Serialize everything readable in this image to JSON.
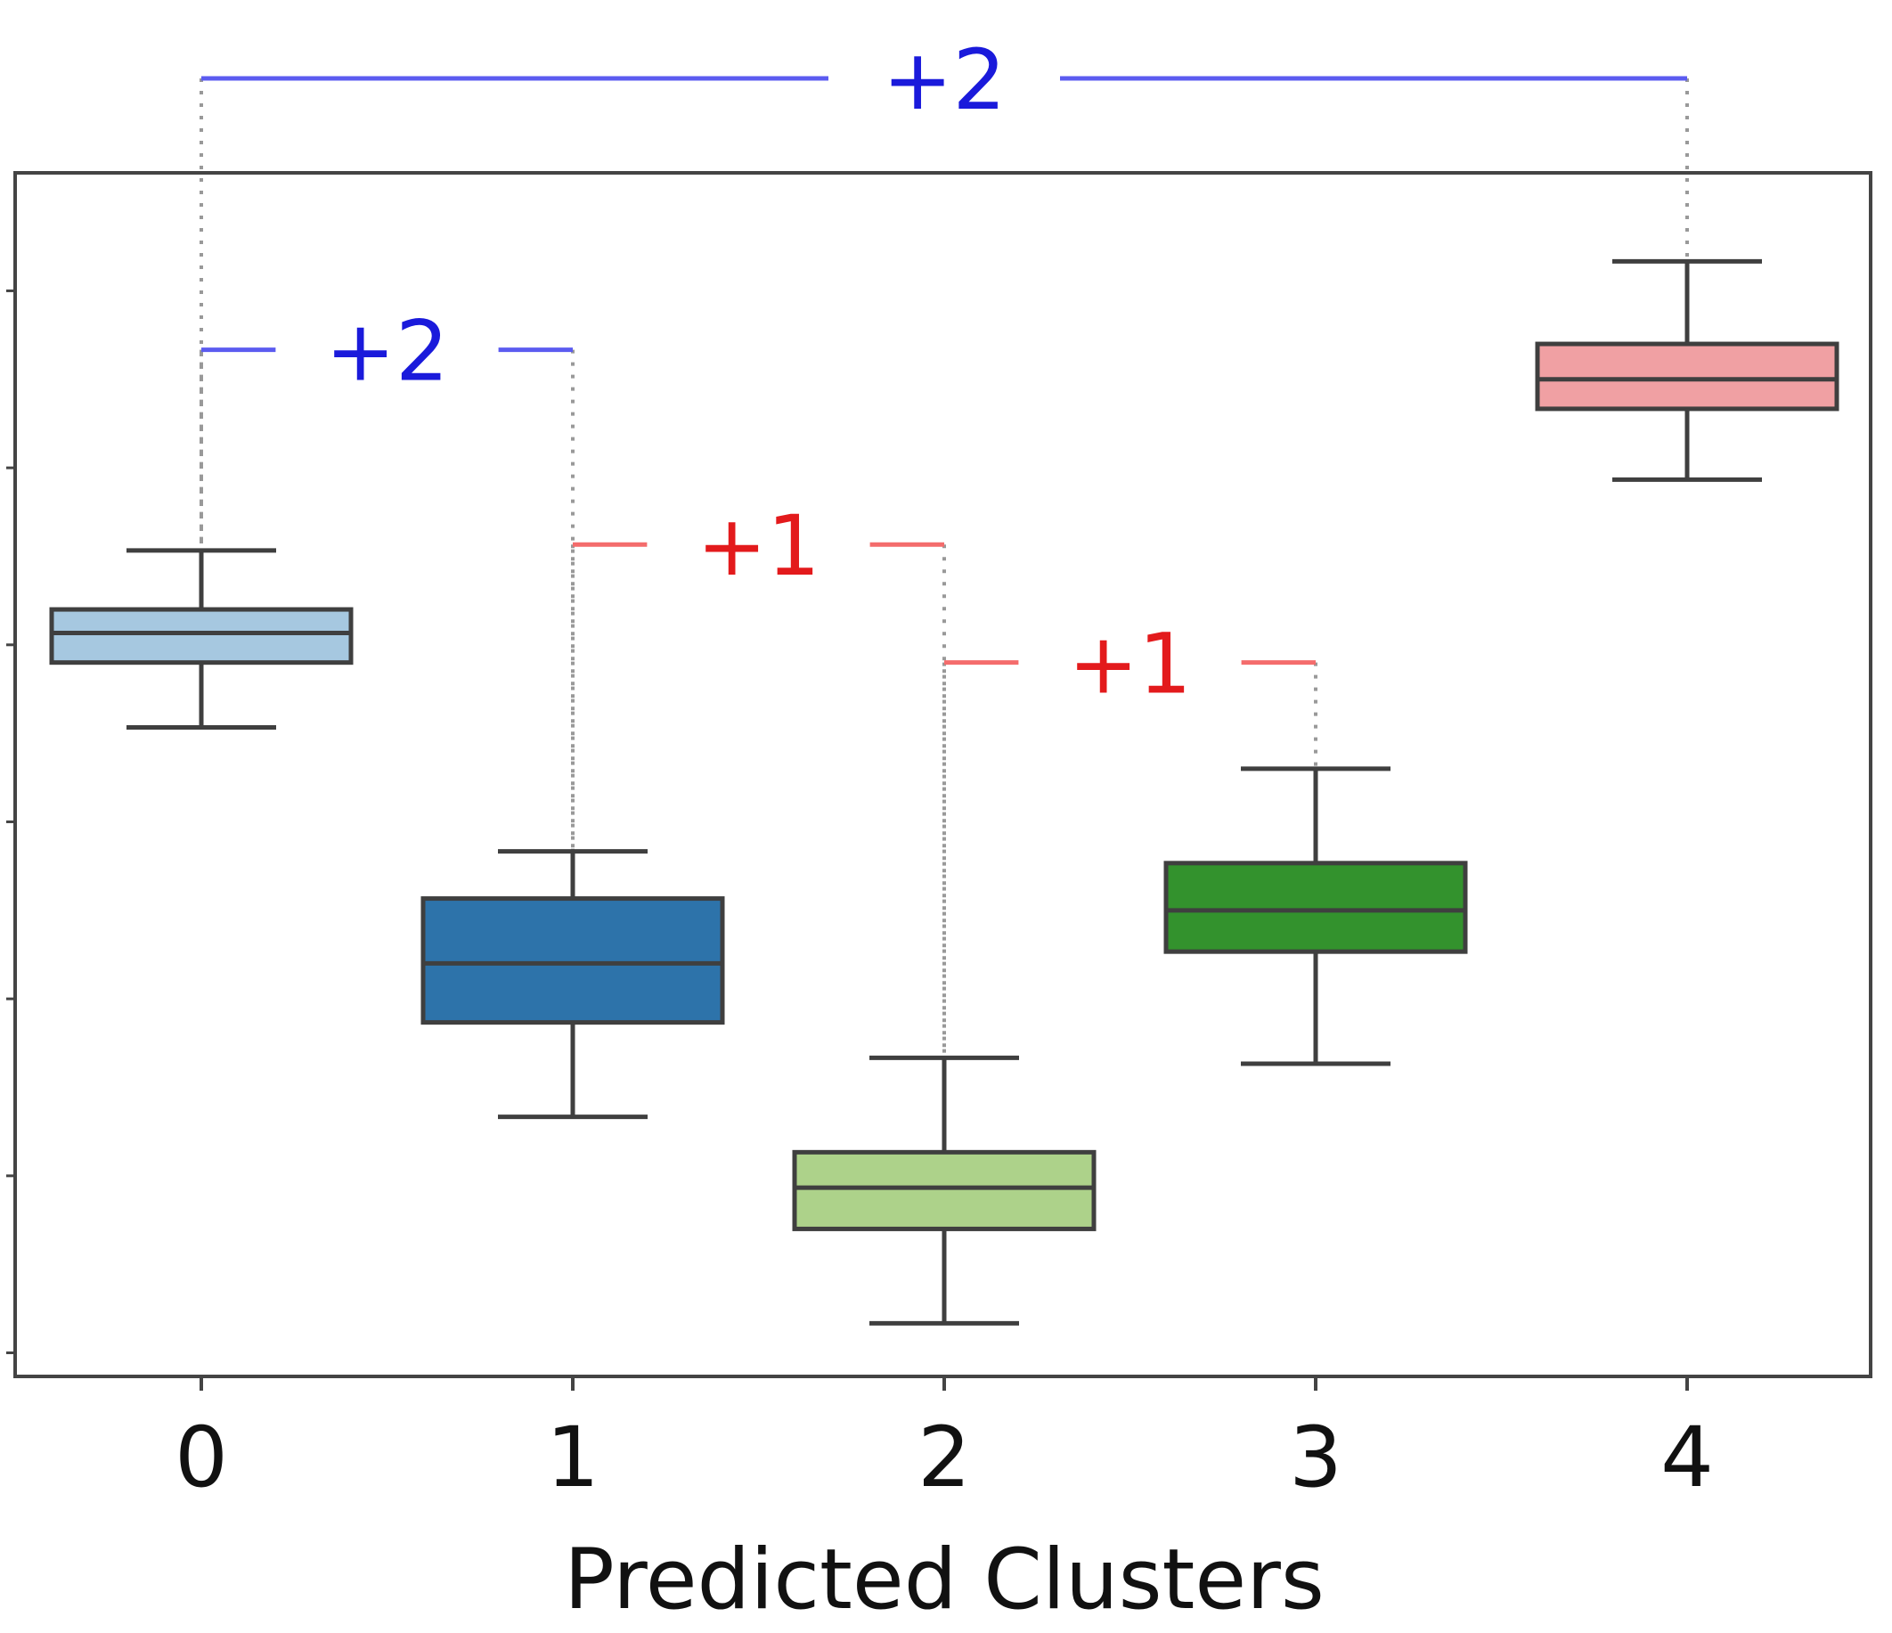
{
  "chart_data": {
    "type": "box",
    "xlabel": "Predicted Clusters",
    "ylabel": "",
    "y_tick_labels_shown": false,
    "ylim": [
      -0.2,
      10.0
    ],
    "categories": [
      "0",
      "1",
      "2",
      "3",
      "4"
    ],
    "boxes": [
      {
        "category": "0",
        "whisker_low": 5.3,
        "q1": 5.85,
        "median": 6.1,
        "q3": 6.3,
        "whisker_high": 6.8,
        "fill": "#a6c8e0"
      },
      {
        "category": "1",
        "whisker_low": 2.0,
        "q1": 2.8,
        "median": 3.3,
        "q3": 3.85,
        "whisker_high": 4.25,
        "fill": "#2d73aa"
      },
      {
        "category": "2",
        "whisker_low": 0.25,
        "q1": 1.05,
        "median": 1.4,
        "q3": 1.7,
        "whisker_high": 2.5,
        "fill": "#add28a"
      },
      {
        "category": "3",
        "whisker_low": 2.45,
        "q1": 3.4,
        "median": 3.75,
        "q3": 4.15,
        "whisker_high": 4.95,
        "fill": "#33922d"
      },
      {
        "category": "4",
        "whisker_low": 7.4,
        "q1": 8.0,
        "median": 8.25,
        "q3": 8.55,
        "whisker_high": 9.25,
        "fill": "#f0a0a3"
      }
    ],
    "annotations": [
      {
        "label": "+2",
        "from": "0",
        "to": "1",
        "level": 8.5,
        "color": "#1a1adb",
        "line_color": "#5b5bf0"
      },
      {
        "label": "+1",
        "from": "1",
        "to": "2",
        "level": 6.85,
        "color": "#e31a1c",
        "line_color": "#f46c6c"
      },
      {
        "label": "+1",
        "from": "2",
        "to": "3",
        "level": 5.85,
        "color": "#e31a1c",
        "line_color": "#f46c6c"
      },
      {
        "label": "+2",
        "from": "0",
        "to": "4",
        "level": 10.8,
        "color": "#1a1adb",
        "line_color": "#5b5bf0"
      }
    ]
  }
}
